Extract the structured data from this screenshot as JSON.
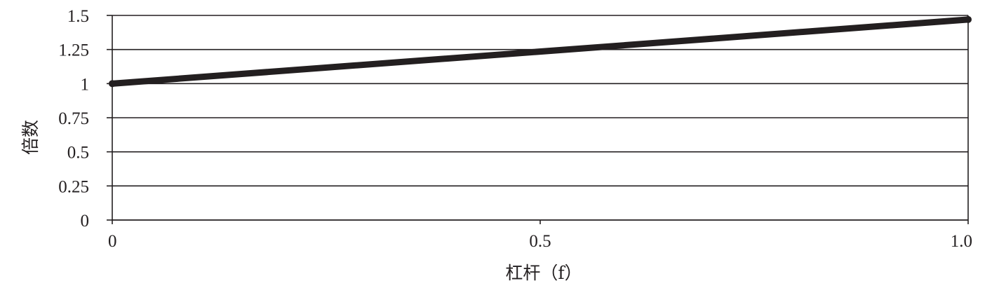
{
  "chart_data": {
    "type": "line",
    "xlabel": "杠杆（f）",
    "ylabel": "倍数",
    "xlim": [
      0,
      1.0
    ],
    "ylim": [
      0,
      1.5
    ],
    "x_ticks": [
      "0",
      "0.5",
      "1.0"
    ],
    "y_ticks": [
      "0",
      "0.25",
      "0.5",
      "0.75",
      "1",
      "1.25",
      "1.5"
    ],
    "grid": "horizontal",
    "legend": "none",
    "series": [
      {
        "x": [
          0,
          1.0
        ],
        "y": [
          1.0,
          1.47
        ],
        "color": "#231f20"
      }
    ]
  }
}
